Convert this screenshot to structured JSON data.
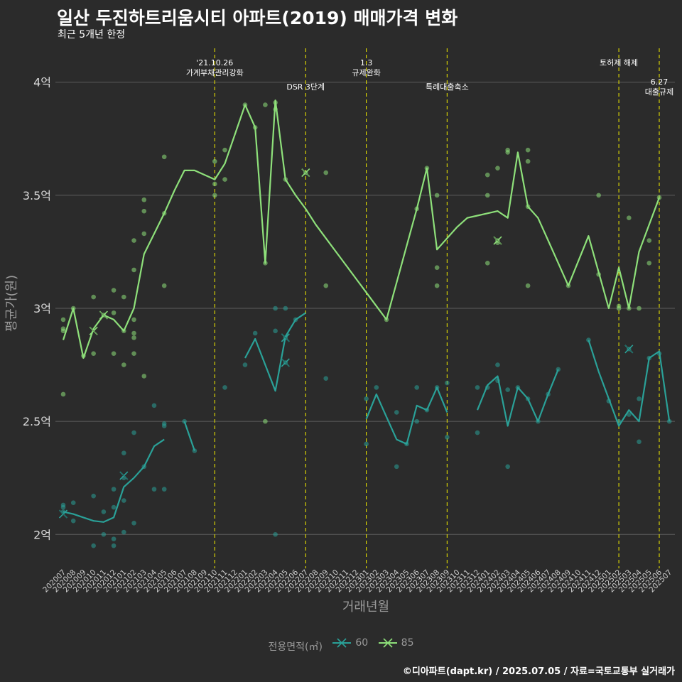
{
  "chart_data": {
    "type": "line",
    "title": "일산 두진하트리움시티 아파트(2019) 매매가격 변화",
    "subtitle": "최근 5개년 한정",
    "xlabel": "거래년월",
    "ylabel": "평균가(원)",
    "caption": "©디아파트(dapt.kr) / 2025.07.05 / 자료=국토교통부 실거래가",
    "legend_title": "전용면적(㎡)",
    "legend_position": "bottom",
    "ylim": [
      1.85,
      4.15
    ],
    "yticks": [
      {
        "value": 2.0,
        "label": "2억"
      },
      {
        "value": 2.5,
        "label": "2.5억"
      },
      {
        "value": 3.0,
        "label": "3억"
      },
      {
        "value": 3.5,
        "label": "3.5억"
      },
      {
        "value": 4.0,
        "label": "4억"
      }
    ],
    "grid": true,
    "months": [
      "202007",
      "202008",
      "202009",
      "202010",
      "202011",
      "202012",
      "202101",
      "202102",
      "202103",
      "202104",
      "202105",
      "202106",
      "202107",
      "202108",
      "202109",
      "202110",
      "202111",
      "202112",
      "202201",
      "202202",
      "202203",
      "202204",
      "202205",
      "202206",
      "202207",
      "202208",
      "202209",
      "202210",
      "202211",
      "202212",
      "202301",
      "202302",
      "202303",
      "202304",
      "202305",
      "202306",
      "202307",
      "202308",
      "202309",
      "202310",
      "202311",
      "202312",
      "202401",
      "202402",
      "202403",
      "202404",
      "202405",
      "202406",
      "202407",
      "202408",
      "202409",
      "202410",
      "202411",
      "202412",
      "202501",
      "202502",
      "202503",
      "202504",
      "202505",
      "202506",
      "202507"
    ],
    "annotations": [
      {
        "x": 15.0,
        "lines": [
          "'21.10.26",
          "가계부채관리강화"
        ],
        "row": 0
      },
      {
        "x": 24.0,
        "lines": [
          "DSR 3단계"
        ],
        "row": 1
      },
      {
        "x": 30.0,
        "lines": [
          "1.3",
          "규제완화"
        ],
        "row": 0
      },
      {
        "x": 38.0,
        "lines": [
          "특례대출축소"
        ],
        "row": 1
      },
      {
        "x": 55.0,
        "lines": [
          "토허제 해제"
        ],
        "row": 0
      },
      {
        "x": 59.0,
        "lines": [
          "6.27",
          "대출규제"
        ],
        "row": 2
      }
    ],
    "series": [
      {
        "name": "60",
        "color": "#2aa198",
        "segments": [
          [
            [
              0,
              2.1
            ],
            [
              1,
              2.09
            ],
            [
              2,
              2.075
            ],
            [
              3,
              2.06
            ],
            [
              4,
              2.055
            ],
            [
              5,
              2.075
            ],
            [
              6,
              2.21
            ],
            [
              7,
              2.25
            ],
            [
              8,
              2.3
            ],
            [
              9,
              2.39
            ],
            [
              10,
              2.42
            ]
          ],
          [
            [
              12,
              2.5
            ],
            [
              13,
              2.37
            ]
          ],
          [
            [
              18,
              2.78
            ],
            [
              19,
              2.865
            ],
            [
              20,
              2.75
            ],
            [
              21,
              2.635
            ],
            [
              22,
              2.875
            ],
            [
              23,
              2.95
            ],
            [
              24,
              2.98
            ]
          ],
          [
            [
              30,
              2.51
            ],
            [
              31,
              2.62
            ],
            [
              32,
              2.52
            ],
            [
              33,
              2.42
            ],
            [
              34,
              2.4
            ],
            [
              35,
              2.57
            ],
            [
              36,
              2.55
            ],
            [
              37,
              2.65
            ],
            [
              38,
              2.54
            ]
          ],
          [
            [
              41,
              2.55
            ],
            [
              42,
              2.66
            ],
            [
              43,
              2.7
            ],
            [
              44,
              2.48
            ],
            [
              45,
              2.65
            ],
            [
              46,
              2.6
            ],
            [
              47,
              2.5
            ],
            [
              48,
              2.62
            ],
            [
              49,
              2.73
            ]
          ],
          [
            [
              52,
              2.86
            ],
            [
              53,
              2.72
            ],
            [
              54,
              2.6
            ],
            [
              55,
              2.48
            ],
            [
              56,
              2.55
            ],
            [
              57,
              2.5
            ],
            [
              58,
              2.78
            ],
            [
              59,
              2.81
            ],
            [
              60,
              2.5
            ]
          ]
        ],
        "points": [
          [
            0,
            2.1
          ],
          [
            0,
            2.13
          ],
          [
            0,
            2.12
          ],
          [
            1,
            2.14
          ],
          [
            1,
            2.06
          ],
          [
            3,
            2.17
          ],
          [
            3,
            1.95
          ],
          [
            4,
            2.1
          ],
          [
            4,
            2.0
          ],
          [
            5,
            2.12
          ],
          [
            5,
            1.98
          ],
          [
            5,
            1.95
          ],
          [
            5,
            2.2
          ],
          [
            6,
            2.36
          ],
          [
            6,
            2.15
          ],
          [
            6,
            2.01
          ],
          [
            6,
            2.25
          ],
          [
            7,
            2.45
          ],
          [
            7,
            2.05
          ],
          [
            8,
            2.3
          ],
          [
            9,
            2.57
          ],
          [
            9,
            2.2
          ],
          [
            10,
            2.48
          ],
          [
            10,
            2.49
          ],
          [
            10,
            2.2
          ],
          [
            12,
            2.5
          ],
          [
            13,
            2.37
          ],
          [
            16,
            2.65
          ],
          [
            18,
            2.75
          ],
          [
            19,
            2.89
          ],
          [
            21,
            3.0
          ],
          [
            21,
            2.9
          ],
          [
            21,
            2.0
          ],
          [
            22,
            3.0
          ],
          [
            22,
            2.87
          ],
          [
            22,
            2.76
          ],
          [
            23,
            2.95
          ],
          [
            26,
            2.69
          ],
          [
            30,
            2.6
          ],
          [
            30,
            2.4
          ],
          [
            31,
            2.65
          ],
          [
            33,
            2.54
          ],
          [
            33,
            2.3
          ],
          [
            34,
            2.4
          ],
          [
            35,
            2.65
          ],
          [
            35,
            2.5
          ],
          [
            36,
            2.55
          ],
          [
            37,
            2.65
          ],
          [
            38,
            2.67
          ],
          [
            38,
            2.43
          ],
          [
            41,
            2.65
          ],
          [
            41,
            2.45
          ],
          [
            42,
            2.65
          ],
          [
            43,
            2.75
          ],
          [
            43,
            2.68
          ],
          [
            44,
            2.64
          ],
          [
            44,
            2.3
          ],
          [
            45,
            2.65
          ],
          [
            46,
            2.6
          ],
          [
            47,
            2.5
          ],
          [
            48,
            2.62
          ],
          [
            49,
            2.73
          ],
          [
            52,
            2.86
          ],
          [
            54,
            2.59
          ],
          [
            55,
            2.5
          ],
          [
            56,
            2.53
          ],
          [
            56,
            2.82
          ],
          [
            57,
            2.6
          ],
          [
            57,
            2.41
          ],
          [
            58,
            2.78
          ],
          [
            59,
            2.8
          ],
          [
            60,
            2.5
          ]
        ],
        "crosses": [
          [
            0,
            2.09
          ],
          [
            6,
            2.26
          ],
          [
            22,
            2.76
          ],
          [
            22,
            2.87
          ],
          [
            56,
            2.82
          ]
        ]
      },
      {
        "name": "85",
        "color": "#8ee07a",
        "segments": [
          [
            [
              0,
              2.86
            ],
            [
              1,
              3.0
            ],
            [
              2,
              2.78
            ],
            [
              3,
              2.91
            ],
            [
              4,
              2.97
            ],
            [
              5,
              2.95
            ],
            [
              6,
              2.9
            ],
            [
              7,
              3.0
            ],
            [
              8,
              3.24
            ],
            [
              9,
              3.33
            ],
            [
              10,
              3.42
            ],
            [
              11,
              3.52
            ],
            [
              12,
              3.61
            ],
            [
              13,
              3.61
            ],
            [
              15,
              3.57
            ],
            [
              16,
              3.64
            ],
            [
              18,
              3.9
            ],
            [
              19,
              3.8
            ],
            [
              20,
              3.2
            ],
            [
              21,
              3.92
            ],
            [
              22,
              3.57
            ],
            [
              23,
              3.5
            ],
            [
              24,
              3.44
            ],
            [
              25,
              3.37
            ],
            [
              26,
              3.31
            ],
            [
              27,
              3.25
            ],
            [
              28,
              3.19
            ],
            [
              29,
              3.13
            ],
            [
              30,
              3.07
            ],
            [
              31,
              3.01
            ],
            [
              32,
              2.95
            ],
            [
              35,
              3.44
            ],
            [
              36,
              3.62
            ],
            [
              37,
              3.26
            ],
            [
              38,
              3.31
            ],
            [
              39,
              3.36
            ],
            [
              40,
              3.4
            ],
            [
              41,
              3.41
            ],
            [
              42,
              3.42
            ],
            [
              43,
              3.43
            ],
            [
              44,
              3.4
            ],
            [
              45,
              3.69
            ],
            [
              46,
              3.45
            ],
            [
              47,
              3.4
            ],
            [
              48,
              3.3
            ],
            [
              49,
              3.2
            ],
            [
              50,
              3.1
            ],
            [
              51,
              3.21
            ],
            [
              52,
              3.32
            ],
            [
              54,
              3.0
            ],
            [
              55,
              3.18
            ],
            [
              56,
              3.0
            ],
            [
              57,
              3.25
            ],
            [
              59,
              3.49
            ]
          ]
        ],
        "points": [
          [
            0,
            2.95
          ],
          [
            0,
            2.91
          ],
          [
            0,
            2.9
          ],
          [
            0,
            2.62
          ],
          [
            1,
            3.0
          ],
          [
            2,
            2.79
          ],
          [
            3,
            3.05
          ],
          [
            3,
            2.8
          ],
          [
            4,
            2.97
          ],
          [
            5,
            3.08
          ],
          [
            5,
            2.98
          ],
          [
            5,
            2.8
          ],
          [
            6,
            3.05
          ],
          [
            6,
            2.9
          ],
          [
            6,
            2.75
          ],
          [
            7,
            2.95
          ],
          [
            7,
            3.17
          ],
          [
            7,
            3.3
          ],
          [
            7,
            2.89
          ],
          [
            7,
            2.87
          ],
          [
            7,
            2.8
          ],
          [
            8,
            3.48
          ],
          [
            8,
            3.43
          ],
          [
            8,
            3.33
          ],
          [
            8,
            2.7
          ],
          [
            10,
            3.67
          ],
          [
            10,
            3.42
          ],
          [
            10,
            3.1
          ],
          [
            15,
            3.65
          ],
          [
            15,
            3.55
          ],
          [
            15,
            3.5
          ],
          [
            16,
            3.7
          ],
          [
            16,
            3.57
          ],
          [
            18,
            3.9
          ],
          [
            19,
            3.8
          ],
          [
            20,
            3.9
          ],
          [
            20,
            3.2
          ],
          [
            20,
            2.5
          ],
          [
            21,
            3.91
          ],
          [
            21,
            3.88
          ],
          [
            22,
            3.57
          ],
          [
            24,
            3.6
          ],
          [
            26,
            3.6
          ],
          [
            26,
            3.1
          ],
          [
            32,
            2.95
          ],
          [
            35,
            3.44
          ],
          [
            36,
            3.62
          ],
          [
            37,
            3.5
          ],
          [
            37,
            3.18
          ],
          [
            37,
            3.1
          ],
          [
            42,
            3.59
          ],
          [
            42,
            3.5
          ],
          [
            42,
            3.2
          ],
          [
            43,
            3.62
          ],
          [
            43,
            3.3
          ],
          [
            43,
            3.29
          ],
          [
            44,
            3.7
          ],
          [
            44,
            3.69
          ],
          [
            46,
            3.7
          ],
          [
            46,
            3.65
          ],
          [
            46,
            3.45
          ],
          [
            46,
            3.1
          ],
          [
            50,
            3.1
          ],
          [
            53,
            3.5
          ],
          [
            53,
            3.15
          ],
          [
            55,
            3.0
          ],
          [
            55,
            3.01
          ],
          [
            56,
            3.4
          ],
          [
            56,
            3.0
          ],
          [
            57,
            3.0
          ],
          [
            58,
            3.3
          ],
          [
            58,
            3.2
          ],
          [
            59,
            3.49
          ]
        ],
        "crosses": [
          [
            3,
            2.9
          ],
          [
            4,
            2.97
          ],
          [
            24,
            3.6
          ],
          [
            43,
            3.3
          ]
        ]
      }
    ]
  }
}
